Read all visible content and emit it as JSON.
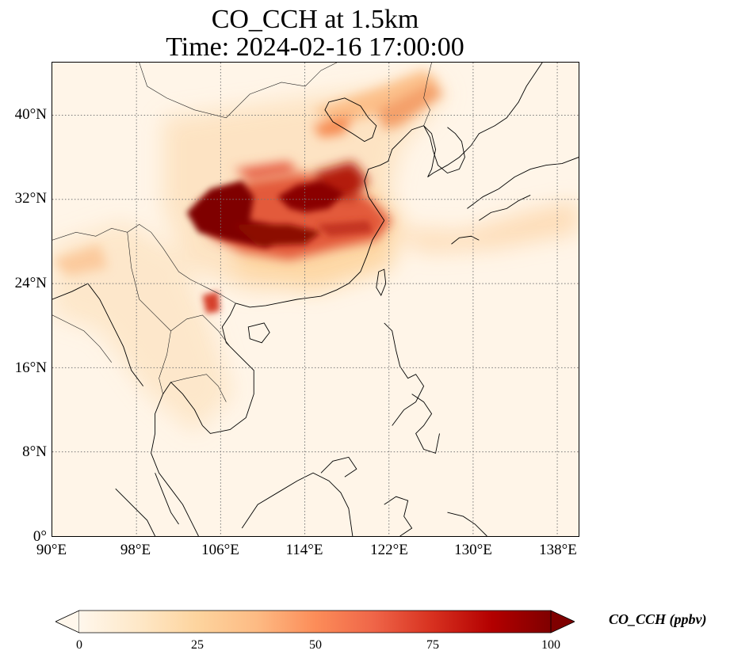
{
  "title": {
    "line1": "CO_CCH at 1.5km",
    "line2": "Time: 2024-02-16 17:00:00"
  },
  "map": {
    "projection": "PlateCarree",
    "lon_range": [
      90,
      140
    ],
    "lat_range": [
      0,
      45
    ],
    "gridlines": "dotted",
    "lat_ticks": [
      "0°",
      "8°N",
      "16°N",
      "24°N",
      "32°N",
      "40°N"
    ],
    "lon_ticks": [
      "90°E",
      "98°E",
      "106°E",
      "114°E",
      "122°E",
      "130°E",
      "138°E"
    ],
    "plume_cores": [
      {
        "lon": 108,
        "lat": 29.5,
        "level": "saturated"
      },
      {
        "lon": 112,
        "lat": 32,
        "level": "high"
      },
      {
        "lon": 105.5,
        "lat": 22,
        "level": "high"
      },
      {
        "lon": 116,
        "lat": 38,
        "level": "moderate"
      },
      {
        "lon": 125,
        "lat": 44,
        "level": "moderate"
      }
    ]
  },
  "colorbar": {
    "label": "CO_CCH (ppbv)",
    "ticks": [
      "0",
      "25",
      "50",
      "75",
      "100"
    ],
    "range": [
      0,
      100
    ],
    "extend": "both",
    "colormap": "OrRd",
    "colors": [
      "#fff7ec",
      "#fee8c8",
      "#fdd49e",
      "#fdbb84",
      "#fc8d59",
      "#ef6548",
      "#d7301f",
      "#b30000",
      "#7f0000"
    ]
  }
}
